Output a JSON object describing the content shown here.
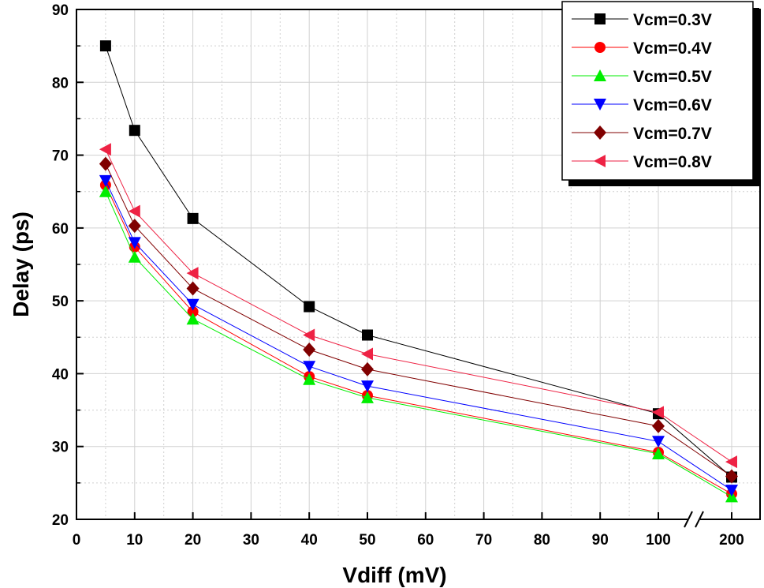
{
  "chart_data": {
    "type": "line",
    "title": "",
    "xlabel": "Vdiff (mV)",
    "ylabel": "Delay (ps)",
    "x": [
      5,
      10,
      20,
      40,
      50,
      100,
      200
    ],
    "x_ticks": [
      "0",
      "10",
      "20",
      "30",
      "40",
      "50",
      "60",
      "70",
      "80",
      "90",
      "100",
      "200"
    ],
    "x_tick_values": [
      0,
      10,
      20,
      30,
      40,
      50,
      60,
      70,
      80,
      90,
      100,
      200
    ],
    "x_axis_break": [
      100,
      200
    ],
    "xlim": [
      0,
      200
    ],
    "ylim": [
      20,
      90
    ],
    "y_ticks": [
      "20",
      "30",
      "40",
      "50",
      "60",
      "70",
      "80",
      "90"
    ],
    "y_tick_values": [
      20,
      30,
      40,
      50,
      60,
      70,
      80,
      90
    ],
    "grid": true,
    "legend_position": "top-right",
    "series": [
      {
        "name": "Vcm=0.3V",
        "color": "#000000",
        "marker": "square",
        "values": [
          85.0,
          73.4,
          61.3,
          49.2,
          45.3,
          34.5,
          25.8
        ]
      },
      {
        "name": "Vcm=0.4V",
        "color": "#ff0000",
        "marker": "circle",
        "values": [
          65.9,
          57.4,
          48.5,
          39.6,
          37.0,
          29.2,
          23.5
        ]
      },
      {
        "name": "Vcm=0.5V",
        "color": "#00ee00",
        "marker": "triangle-up",
        "values": [
          65.0,
          56.0,
          47.5,
          39.2,
          36.7,
          29.0,
          23.1
        ]
      },
      {
        "name": "Vcm=0.6V",
        "color": "#0000ff",
        "marker": "triangle-down",
        "values": [
          66.5,
          58.0,
          49.5,
          41.0,
          38.3,
          30.7,
          24.0
        ]
      },
      {
        "name": "Vcm=0.7V",
        "color": "#800000",
        "marker": "diamond",
        "values": [
          68.8,
          60.3,
          51.7,
          43.3,
          40.6,
          32.8,
          25.9
        ]
      },
      {
        "name": "Vcm=0.8V",
        "color": "#ee2244",
        "marker": "triangle-left",
        "values": [
          70.8,
          62.3,
          53.8,
          45.3,
          42.7,
          34.7,
          27.9
        ]
      }
    ]
  }
}
